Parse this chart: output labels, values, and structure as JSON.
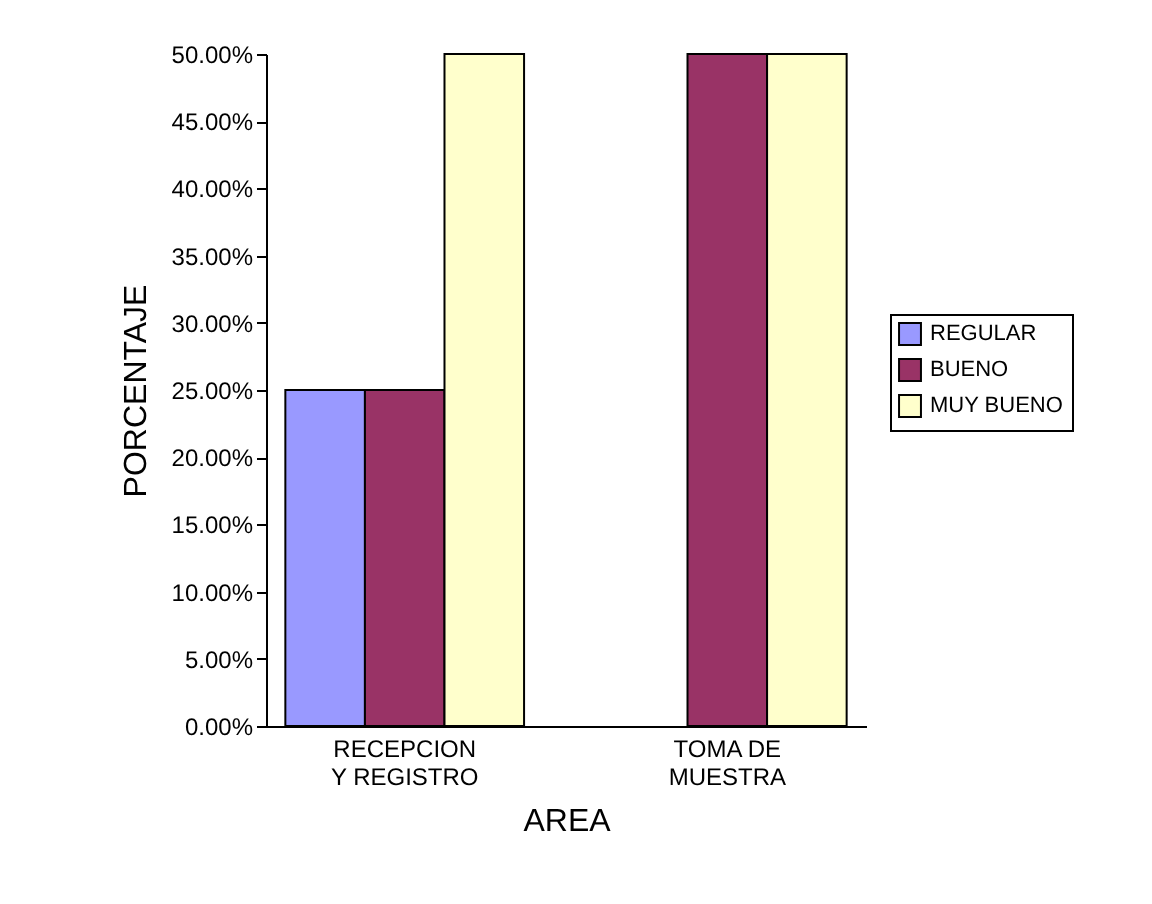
{
  "chart_data": {
    "type": "bar",
    "xlabel": "AREA",
    "ylabel": "PORCENTAJE",
    "categories": [
      "RECEPCION Y REGISTRO",
      "TOMA DE MUESTRA"
    ],
    "series": [
      {
        "name": "REGULAR",
        "color": "#9999ff",
        "values": [
          25,
          0
        ]
      },
      {
        "name": "BUENO",
        "color": "#993366",
        "values": [
          25,
          50
        ]
      },
      {
        "name": "MUY BUENO",
        "color": "#ffffcc",
        "values": [
          50,
          50
        ]
      }
    ],
    "ylim": [
      0,
      50
    ],
    "yticks": [
      {
        "value": 0,
        "label": "0.00%"
      },
      {
        "value": 5,
        "label": "5.00%"
      },
      {
        "value": 10,
        "label": "10.00%"
      },
      {
        "value": 15,
        "label": "15.00%"
      },
      {
        "value": 20,
        "label": "20.00%"
      },
      {
        "value": 25,
        "label": "25.00%"
      },
      {
        "value": 30,
        "label": "30.00%"
      },
      {
        "value": 35,
        "label": "35.00%"
      },
      {
        "value": 40,
        "label": "40.00%"
      },
      {
        "value": 45,
        "label": "45.00%"
      },
      {
        "value": 50,
        "label": "50.00%"
      }
    ],
    "grid": false,
    "legend": "right"
  }
}
